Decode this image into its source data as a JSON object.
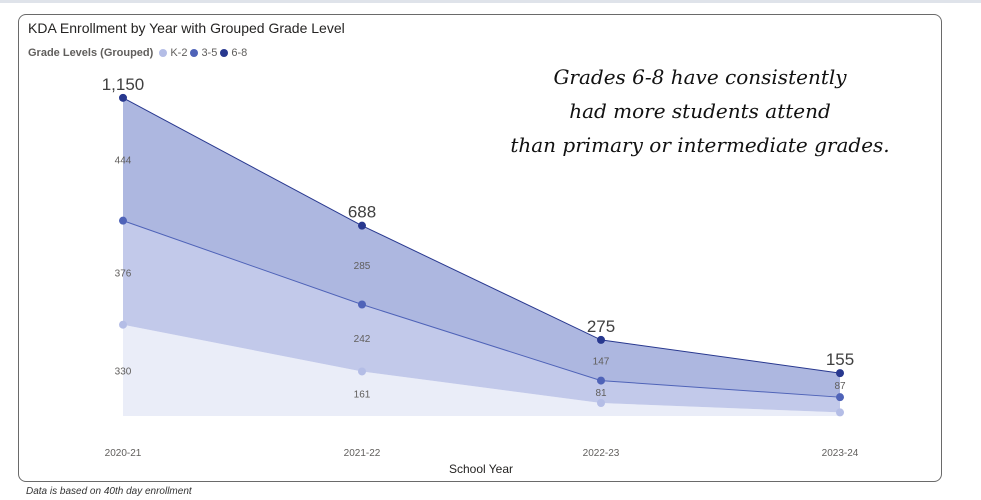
{
  "chart_data": {
    "type": "area",
    "stacked": true,
    "title": "KDA Enrollment by Year with Grouped Grade Level",
    "legend_title": "Grade Levels (Grouped)",
    "xlabel": "School Year",
    "ylabel": "",
    "categories": [
      "2020-21",
      "2021-22",
      "2022-23",
      "2023-24"
    ],
    "series": [
      {
        "name": "K-2",
        "values": [
          330,
          161,
          47,
          13
        ],
        "labels": [
          "330",
          "161",
          "",
          ""
        ],
        "color": "#b4bde6",
        "fill": "#eaedf8"
      },
      {
        "name": "3-5",
        "values": [
          376,
          242,
          81,
          55
        ],
        "labels": [
          "376",
          "242",
          "81",
          ""
        ],
        "color": "#4f63b8",
        "fill": "#c2c9ea"
      },
      {
        "name": "6-8",
        "values": [
          444,
          285,
          147,
          87
        ],
        "labels": [
          "444",
          "285",
          "147",
          "87"
        ],
        "color": "#28388f",
        "fill": "#adb7e0"
      }
    ],
    "totals": [
      1150,
      688,
      275,
      155
    ],
    "total_labels": [
      "1,150",
      "688",
      "275",
      "155"
    ],
    "ylim": [
      0,
      1200
    ],
    "grid": false,
    "legend_position": "top-left",
    "annotation": [
      "Grades 6-8 have consistently",
      "had more students attend",
      "than primary or intermediate grades."
    ]
  },
  "footnote": "Data is based on 40th day enrollment"
}
